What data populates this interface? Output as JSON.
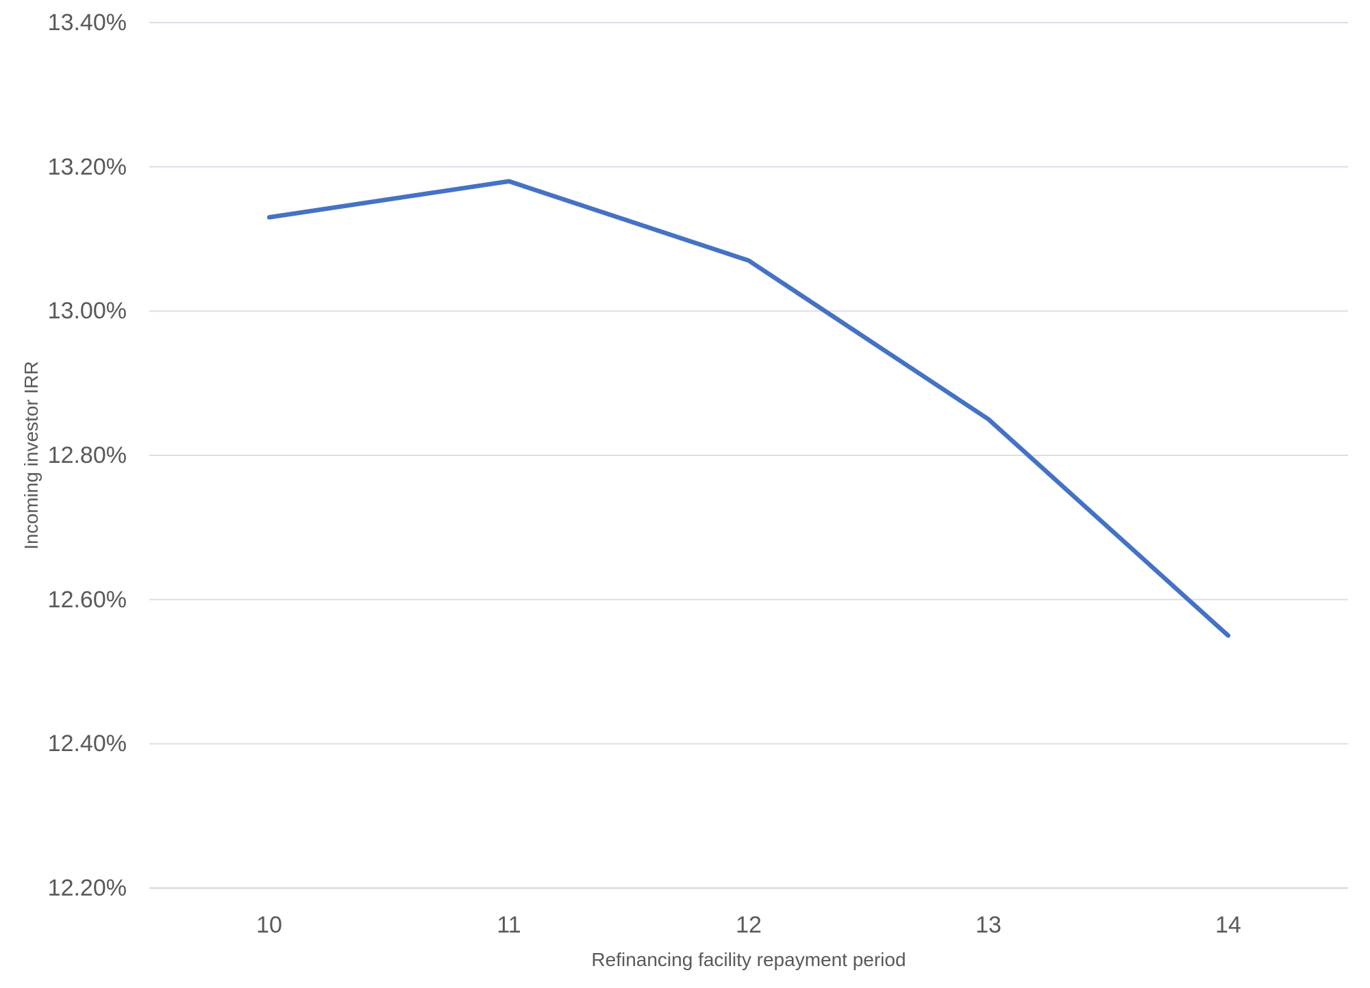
{
  "chart_data": {
    "type": "line",
    "title": "",
    "xlabel": "Refinancing facility repayment period",
    "ylabel": "Incoming investor IRR",
    "categories": [
      "10",
      "11",
      "12",
      "13",
      "14"
    ],
    "series": [
      {
        "name": "Incoming investor IRR",
        "values": [
          13.13,
          13.18,
          13.07,
          12.85,
          12.55
        ]
      }
    ],
    "y_axis": {
      "min": 12.2,
      "max": 13.4,
      "step": 0.2,
      "tick_labels_top_to_bottom": [
        "13.40%",
        "13.20%",
        "13.00%",
        "12.80%",
        "12.60%",
        "12.40%",
        "12.20%"
      ]
    },
    "grid": true,
    "legend": false,
    "colors": {
      "line": "#4472C4",
      "gridline": "#d9deeb",
      "axis_line": "#d9d9d9",
      "text": "#595959",
      "background": "#ffffff"
    }
  }
}
